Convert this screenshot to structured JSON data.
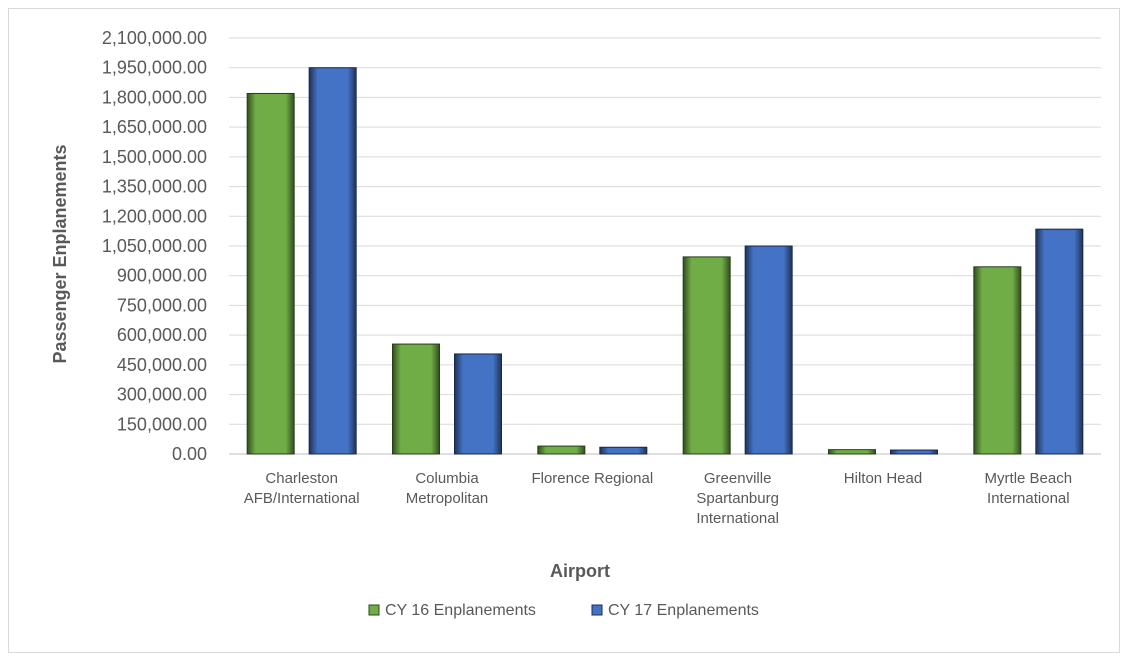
{
  "chart_data": {
    "type": "bar",
    "title": "",
    "xlabel": "Airport",
    "ylabel": "Passenger Enplanements",
    "ylim": [
      0,
      2100000
    ],
    "ytick_step": 150000,
    "yticks": [
      "0.00",
      "150,000.00",
      "300,000.00",
      "450,000.00",
      "600,000.00",
      "750,000.00",
      "900,000.00",
      "1,050,000.00",
      "1,200,000.00",
      "1,350,000.00",
      "1,500,000.00",
      "1,650,000.00",
      "1,800,000.00",
      "1,950,000.00",
      "2,100,000.00"
    ],
    "grid": true,
    "legend_position": "bottom",
    "categories": [
      [
        "Charleston",
        "AFB/International"
      ],
      [
        "Columbia",
        "Metropolitan"
      ],
      [
        "Florence Regional"
      ],
      [
        "Greenville",
        "Spartanburg",
        "International"
      ],
      [
        "Hilton Head"
      ],
      [
        "Myrtle Beach",
        "International"
      ]
    ],
    "series": [
      {
        "name": "CY 16 Enplanements",
        "color": "#70ad47",
        "values": [
          1820000,
          555000,
          40000,
          995000,
          22000,
          945000
        ]
      },
      {
        "name": "CY 17 Enplanements",
        "color": "#4472c4",
        "values": [
          1950000,
          505000,
          34000,
          1050000,
          20000,
          1135000
        ]
      }
    ]
  }
}
